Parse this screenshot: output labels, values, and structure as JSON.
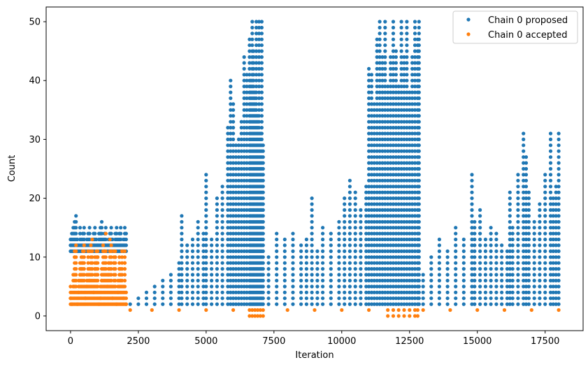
{
  "chart_data": {
    "type": "scatter",
    "xlabel": "Iteration",
    "ylabel": "Count",
    "xlim": [
      -900,
      18900
    ],
    "ylim": [
      -2.5,
      52.5
    ],
    "xticks": [
      0,
      2500,
      5000,
      7500,
      10000,
      12500,
      15000,
      17500
    ],
    "yticks": [
      0,
      10,
      20,
      30,
      40,
      50
    ],
    "grid": false,
    "legend_position": "top-right",
    "colors": {
      "proposed": "#1f77b4",
      "accepted": "#ff7f0e"
    },
    "series": [
      {
        "name": "Chain 0 proposed",
        "color": "#1f77b4",
        "x": [
          0,
          50,
          100,
          150,
          200,
          250,
          300,
          350,
          400,
          450,
          500,
          550,
          600,
          650,
          700,
          750,
          800,
          850,
          900,
          950,
          1000,
          1050,
          1100,
          1150,
          1200,
          1250,
          1300,
          1350,
          1400,
          1450,
          1500,
          1550,
          1600,
          1650,
          1700,
          1750,
          1800,
          1850,
          1900,
          1950,
          2000,
          2050,
          2200,
          2500,
          2800,
          3100,
          3400,
          3700,
          4000,
          4100,
          4300,
          4500,
          4700,
          4900,
          5000,
          5200,
          5400,
          5600,
          5800,
          5900,
          6000,
          6100,
          6200,
          6300,
          6400,
          6500,
          6600,
          6650,
          6700,
          6750,
          6800,
          6850,
          6900,
          6950,
          7000,
          7050,
          7100,
          7300,
          7600,
          7900,
          8200,
          8500,
          8700,
          8900,
          9100,
          9300,
          9600,
          9900,
          10100,
          10300,
          10500,
          10700,
          10900,
          11000,
          11100,
          11200,
          11300,
          11400,
          11500,
          11600,
          11700,
          11800,
          11900,
          12000,
          12100,
          12200,
          12300,
          12400,
          12500,
          12600,
          12700,
          12800,
          12850,
          13000,
          13300,
          13600,
          13900,
          14200,
          14500,
          14800,
          14900,
          15100,
          15300,
          15500,
          15700,
          15900,
          16100,
          16200,
          16300,
          16500,
          16700,
          16800,
          16900,
          17100,
          17300,
          17500,
          17700,
          17800,
          17900,
          18000
        ],
        "y": [
          13,
          14,
          15,
          16,
          17,
          13,
          12,
          15,
          13,
          14,
          15,
          12,
          13,
          14,
          15,
          12,
          13,
          14,
          15,
          13,
          12,
          14,
          15,
          16,
          13,
          14,
          15,
          12,
          13,
          14,
          15,
          13,
          12,
          14,
          15,
          13,
          14,
          15,
          12,
          13,
          15,
          14,
          2,
          3,
          4,
          5,
          6,
          7,
          9,
          17,
          12,
          13,
          16,
          14,
          24,
          13,
          20,
          22,
          32,
          40,
          36,
          29,
          30,
          33,
          44,
          41,
          47,
          40,
          50,
          45,
          38,
          50,
          34,
          50,
          31,
          50,
          29,
          10,
          14,
          13,
          14,
          12,
          13,
          20,
          11,
          15,
          14,
          16,
          20,
          23,
          21,
          18,
          22,
          42,
          41,
          36,
          47,
          50,
          44,
          50,
          39,
          44,
          50,
          45,
          39,
          50,
          44,
          50,
          38,
          44,
          50,
          47,
          50,
          7,
          10,
          13,
          11,
          15,
          13,
          24,
          16,
          18,
          13,
          15,
          14,
          12,
          11,
          21,
          15,
          24,
          31,
          27,
          21,
          16,
          19,
          24,
          31,
          20,
          22,
          31
        ],
        "marker": "circle"
      },
      {
        "name": "Chain 0 accepted",
        "color": "#ff7f0e",
        "x": [
          0,
          50,
          100,
          150,
          200,
          250,
          300,
          350,
          400,
          450,
          500,
          550,
          600,
          650,
          700,
          750,
          800,
          850,
          900,
          950,
          1000,
          1050,
          1100,
          1150,
          1200,
          1250,
          1300,
          1350,
          1400,
          1450,
          1500,
          1550,
          1600,
          1650,
          1700,
          1750,
          1800,
          1850,
          1900,
          1950,
          2000,
          2050,
          2200,
          3000,
          4000,
          5000,
          6000,
          6600,
          6700,
          6800,
          6900,
          7000,
          7100,
          8000,
          9000,
          10000,
          11000,
          11700,
          11900,
          12100,
          12300,
          12500,
          12700,
          12800,
          13000,
          14000,
          15000,
          16000,
          17000,
          18000
        ],
        "y": [
          3,
          2,
          5,
          10,
          12,
          2,
          4,
          7,
          8,
          9,
          12,
          3,
          5,
          11,
          6,
          12,
          13,
          4,
          8,
          9,
          10,
          2,
          3,
          6,
          12,
          11,
          14,
          5,
          7,
          13,
          12,
          3,
          9,
          10,
          2,
          4,
          8,
          6,
          11,
          3,
          9,
          2,
          1,
          1,
          1,
          1,
          1,
          0,
          0,
          0,
          0,
          0,
          0,
          1,
          1,
          1,
          1,
          0,
          0,
          0,
          0,
          0,
          0,
          0,
          1,
          1,
          1,
          1,
          1,
          1
        ],
        "marker": "circle"
      }
    ]
  }
}
